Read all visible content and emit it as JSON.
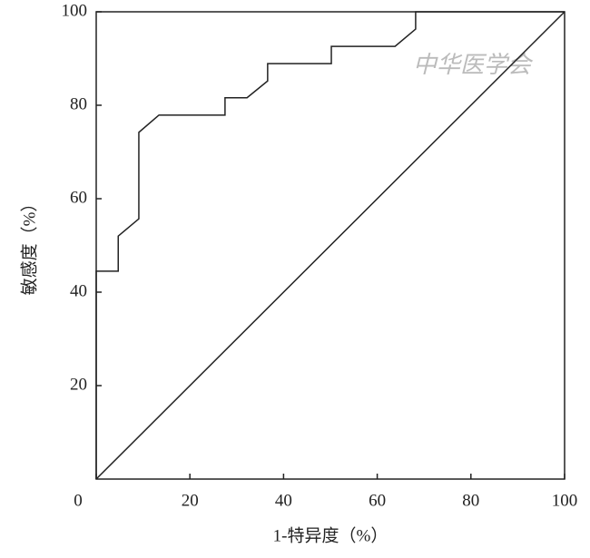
{
  "chart_data": {
    "type": "line",
    "x_label": "1-特异度（%）",
    "y_label": "敏感度（%）",
    "watermark": "中华医学会",
    "xlim": [
      0,
      100
    ],
    "ylim": [
      0,
      100
    ],
    "xticks": [
      0,
      20,
      40,
      60,
      80,
      100
    ],
    "yticks": [
      20,
      40,
      60,
      80,
      100
    ],
    "series": [
      {
        "color": "#222222",
        "x": [
          0,
          0,
          4.7,
          4.7,
          9.1,
          9.1,
          13.4,
          27.5,
          27.5,
          32.2,
          36.6,
          36.6,
          50.2,
          50.2,
          63.8,
          68.2,
          68.2,
          100
        ],
        "values": [
          0,
          44.5,
          44.5,
          52,
          55.7,
          74.2,
          77.9,
          77.9,
          81.6,
          81.6,
          85.2,
          88.9,
          88.9,
          92.6,
          92.6,
          96.3,
          100,
          100
        ]
      },
      {
        "color": "#222222",
        "x": [
          0,
          100
        ],
        "values": [
          0,
          100
        ]
      }
    ]
  }
}
